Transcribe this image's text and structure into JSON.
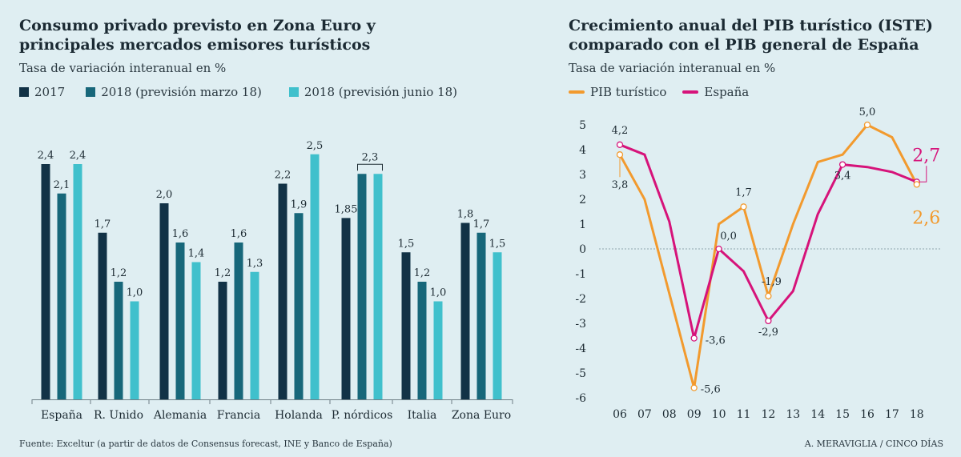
{
  "colors": {
    "s2017": "#123246",
    "s2018m": "#17677a",
    "s2018j": "#40c0cc",
    "pib": "#f29a2e",
    "espana": "#d6137a"
  },
  "footer": {
    "source": "Fuente: Exceltur (a partir de datos de Consensus forecast, INE y Banco de España)",
    "credit": "A. MERAVIGLIA / CINCO DÍAS"
  },
  "chart_data": [
    {
      "type": "bar",
      "title_line1": "Consumo privado previsto en Zona Euro y",
      "title_line2": "principales mercados emisores turísticos",
      "subtitle": "Tasa de variación interanual en %",
      "categories": [
        "España",
        "R. Unido",
        "Alemania",
        "Francia",
        "Holanda",
        "P. nórdicos",
        "Italia",
        "Zona Euro"
      ],
      "series": [
        {
          "name": "2017",
          "values": [
            2.4,
            1.7,
            2.0,
            1.2,
            2.2,
            1.85,
            1.5,
            1.8
          ],
          "labels": [
            "2,4",
            "1,7",
            "2,0",
            "1,2",
            "2,2",
            "1,85",
            "1,5",
            "1,8"
          ]
        },
        {
          "name": "2018 (previsión marzo 18)",
          "values": [
            2.1,
            1.2,
            1.6,
            1.6,
            1.9,
            2.3,
            1.2,
            1.7
          ],
          "labels": [
            "2,1",
            "1,2",
            "1,6",
            "1,6",
            "1,9",
            "",
            "1,2",
            "1,7"
          ]
        },
        {
          "name": "2018 (previsión junio 18)",
          "values": [
            2.4,
            1.0,
            1.4,
            1.3,
            2.5,
            2.3,
            1.0,
            1.5
          ],
          "labels": [
            "2,4",
            "1,0",
            "1,4",
            "1,3",
            "2,5",
            "",
            "1,0",
            "1,5"
          ]
        }
      ],
      "annotations": [
        {
          "category": "P. nórdicos",
          "text": "2,3",
          "note": "shared label for both 2018 bars"
        }
      ],
      "ylim": [
        0,
        2.7
      ]
    },
    {
      "type": "line",
      "title_line1": "Crecimiento anual del PIB turístico (ISTE)",
      "title_line2": "comparado con el PIB general de España",
      "subtitle": "Tasa de variación interanual en %",
      "x": [
        "06",
        "07",
        "08",
        "09",
        "10",
        "11",
        "12",
        "13",
        "14",
        "15",
        "16",
        "17",
        "18"
      ],
      "yticks": [
        "5",
        "4",
        "3",
        "2",
        "1",
        "0",
        "-1",
        "-2",
        "-3",
        "-4",
        "-5",
        "-6"
      ],
      "ylim": [
        -6,
        5
      ],
      "series": [
        {
          "name": "PIB turístico",
          "values": [
            3.8,
            2.0,
            -1.8,
            -5.6,
            1.0,
            1.7,
            -1.9,
            1.0,
            3.5,
            3.8,
            5.0,
            4.5,
            2.6
          ]
        },
        {
          "name": "España",
          "values": [
            4.2,
            3.8,
            1.1,
            -3.6,
            0.0,
            -0.9,
            -2.9,
            -1.7,
            1.4,
            3.4,
            3.3,
            3.1,
            2.7
          ]
        }
      ],
      "point_labels": [
        {
          "series": 1,
          "index": 0,
          "text": "4,2"
        },
        {
          "series": 0,
          "index": 0,
          "text": "3,8"
        },
        {
          "series": 1,
          "index": 3,
          "text": "-3,6"
        },
        {
          "series": 0,
          "index": 3,
          "text": "-5,6"
        },
        {
          "series": 1,
          "index": 4,
          "text": "0,0"
        },
        {
          "series": 0,
          "index": 5,
          "text": "1,7"
        },
        {
          "series": 0,
          "index": 6,
          "text": "-1,9"
        },
        {
          "series": 1,
          "index": 6,
          "text": "-2,9"
        },
        {
          "series": 1,
          "index": 9,
          "text": "3,4"
        },
        {
          "series": 0,
          "index": 10,
          "text": "5,0"
        },
        {
          "series": 1,
          "index": 12,
          "text": "2,7"
        },
        {
          "series": 0,
          "index": 12,
          "text": "2,6"
        }
      ]
    }
  ]
}
